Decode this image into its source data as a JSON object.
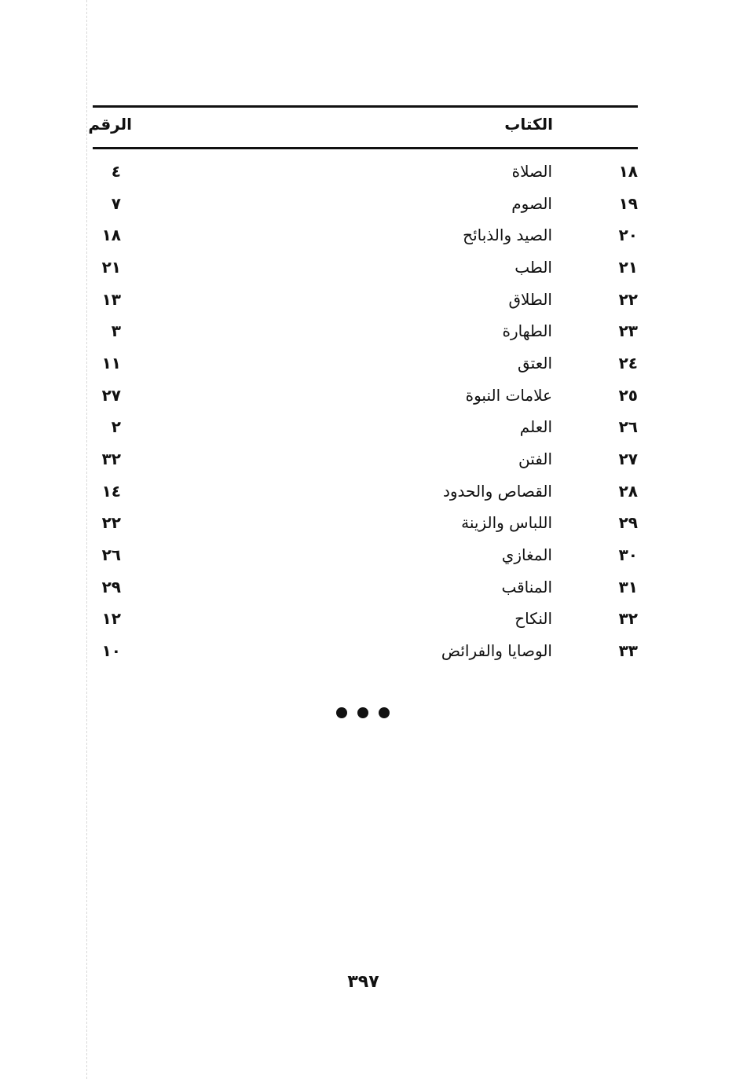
{
  "table": {
    "headers": {
      "book": "الكتاب",
      "number": "الرقم"
    },
    "rows": [
      {
        "serial": "١٨",
        "title": "الصلاة",
        "count": "٤"
      },
      {
        "serial": "١٩",
        "title": "الصوم",
        "count": "٧"
      },
      {
        "serial": "٢٠",
        "title": "الصيد والذبائح",
        "count": "١٨"
      },
      {
        "serial": "٢١",
        "title": "الطب",
        "count": "٢١"
      },
      {
        "serial": "٢٢",
        "title": "الطلاق",
        "count": "١٣"
      },
      {
        "serial": "٢٣",
        "title": "الطهارة",
        "count": "٣"
      },
      {
        "serial": "٢٤",
        "title": "العتق",
        "count": "١١"
      },
      {
        "serial": "٢٥",
        "title": "علامات النبوة",
        "count": "٢٧"
      },
      {
        "serial": "٢٦",
        "title": "العلم",
        "count": "٢"
      },
      {
        "serial": "٢٧",
        "title": "الفتن",
        "count": "٣٢"
      },
      {
        "serial": "٢٨",
        "title": "القصاص والحدود",
        "count": "١٤"
      },
      {
        "serial": "٢٩",
        "title": "اللباس والزينة",
        "count": "٢٢"
      },
      {
        "serial": "٣٠",
        "title": "المغازي",
        "count": "٢٦"
      },
      {
        "serial": "٣١",
        "title": "المناقب",
        "count": "٢٩"
      },
      {
        "serial": "٣٢",
        "title": "النكاح",
        "count": "١٢"
      },
      {
        "serial": "٣٣",
        "title": "الوصايا والفرائض",
        "count": "١٠"
      }
    ]
  },
  "page_number": "٣٩٧"
}
